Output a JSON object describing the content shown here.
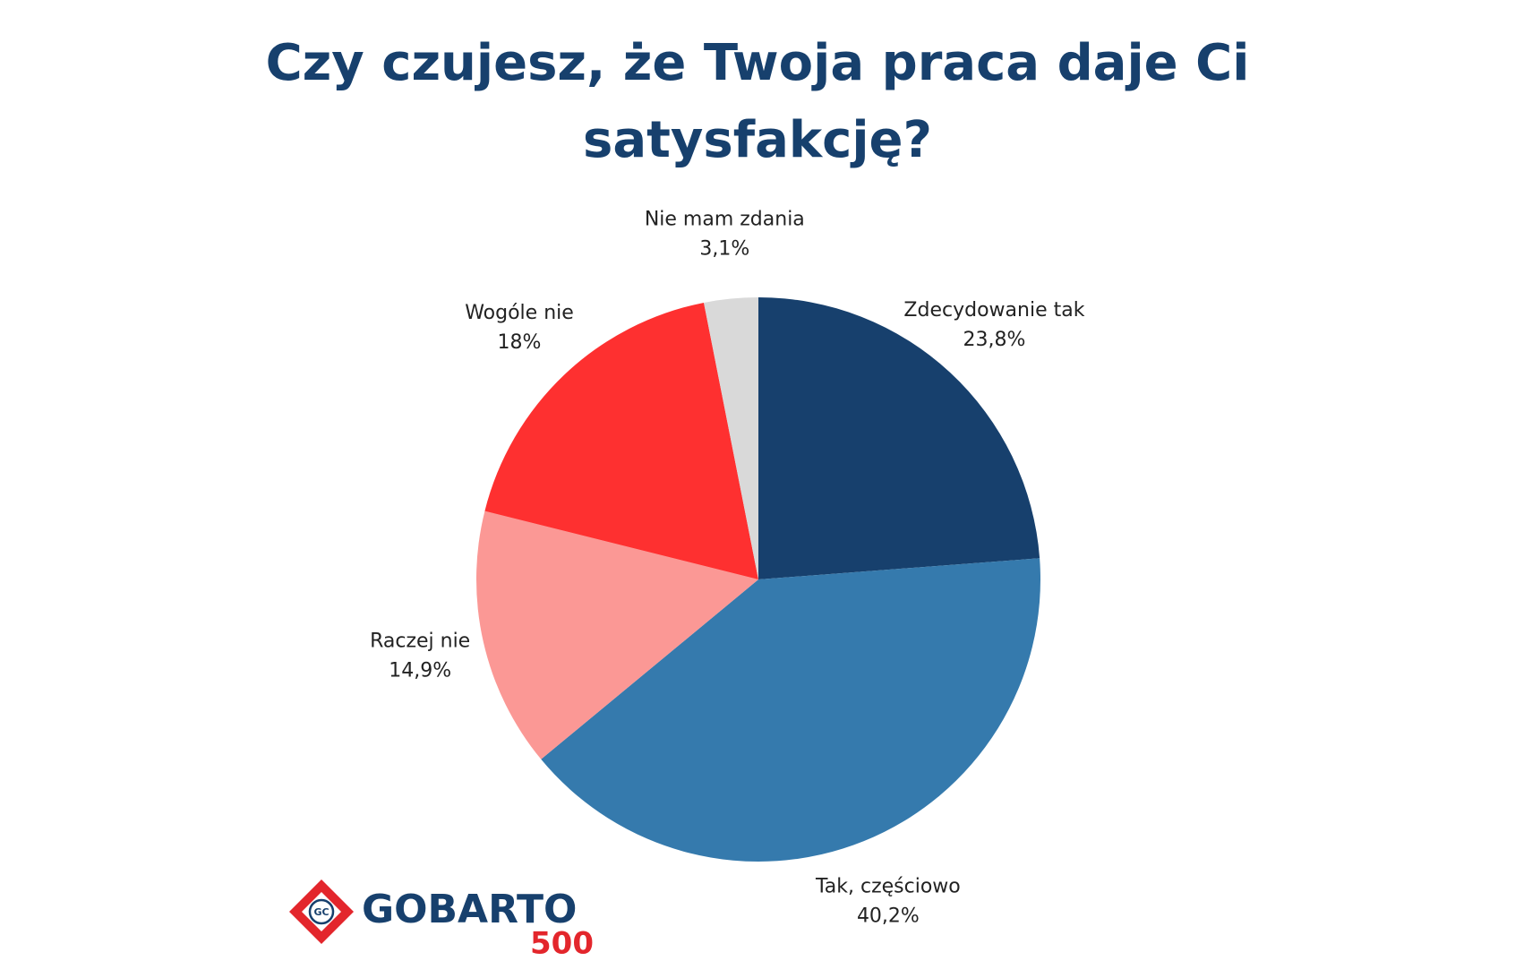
{
  "chart_data": {
    "type": "pie",
    "title": "Czy czujesz, że Twoja praca daje Ci satysfakcję?",
    "categories": [
      "Zdecydowanie tak",
      "Tak, częściowo",
      "Raczej nie",
      "Wogóle nie",
      "Nie mam zdania"
    ],
    "values": [
      23.8,
      40.2,
      14.9,
      18,
      3.1
    ],
    "value_labels": [
      "23,8%",
      "40,2%",
      "14,9%",
      "18%",
      "3,1%"
    ],
    "colors": [
      "#17406d",
      "#357aad",
      "#fb9895",
      "#fe3030",
      "#d9d9d9"
    ]
  },
  "logo": {
    "badge": "GC",
    "name": "GOBARTO",
    "number": "500"
  }
}
